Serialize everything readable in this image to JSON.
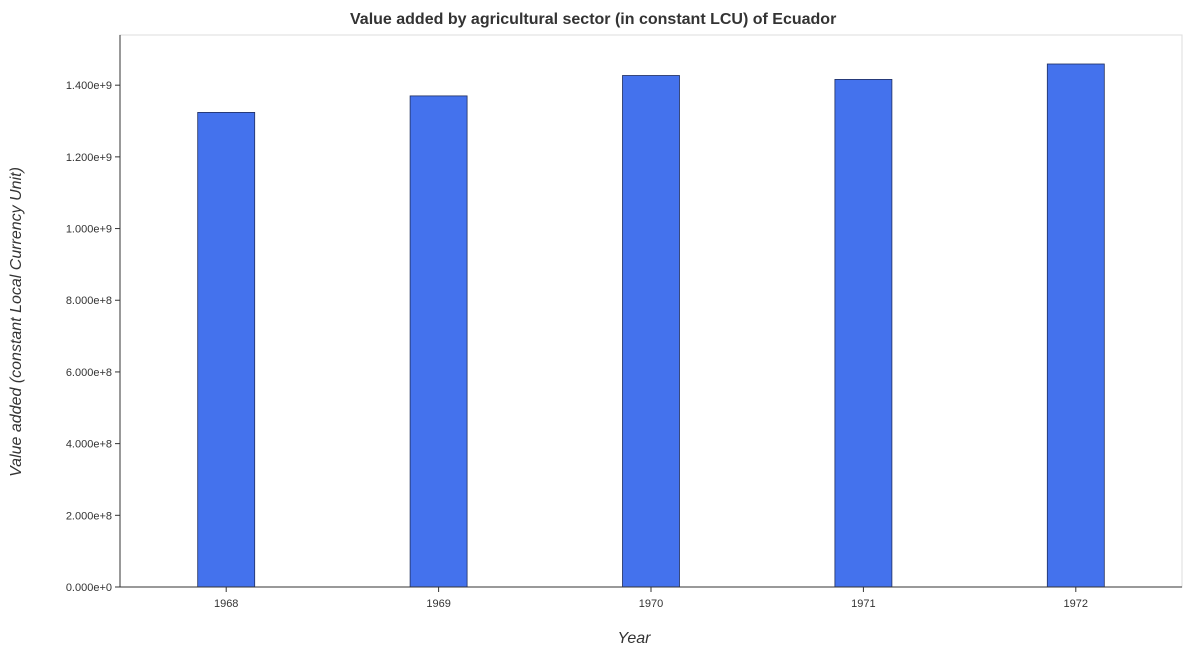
{
  "chart_data": {
    "type": "bar",
    "title": "Value added by agricultural sector (in constant LCU) of Ecuador",
    "xlabel": "Year",
    "ylabel": "Value added (constant Local Currency Unit)",
    "categories": [
      "1968",
      "1969",
      "1970",
      "1971",
      "1972"
    ],
    "values": [
      1324000000,
      1370000000,
      1427000000,
      1416000000,
      1459000000
    ],
    "ylim": [
      0,
      1540000000
    ],
    "yticks": [
      0,
      200000000,
      400000000,
      600000000,
      800000000,
      1000000000,
      1200000000,
      1400000000
    ],
    "ytick_labels": [
      "0.000e+0",
      "2.000e+8",
      "4.000e+8",
      "6.000e+8",
      "8.000e+8",
      "1.000e+9",
      "1.200e+9",
      "1.400e+9"
    ],
    "grid": false,
    "legend": "none",
    "bar_color": "#4472ed"
  }
}
